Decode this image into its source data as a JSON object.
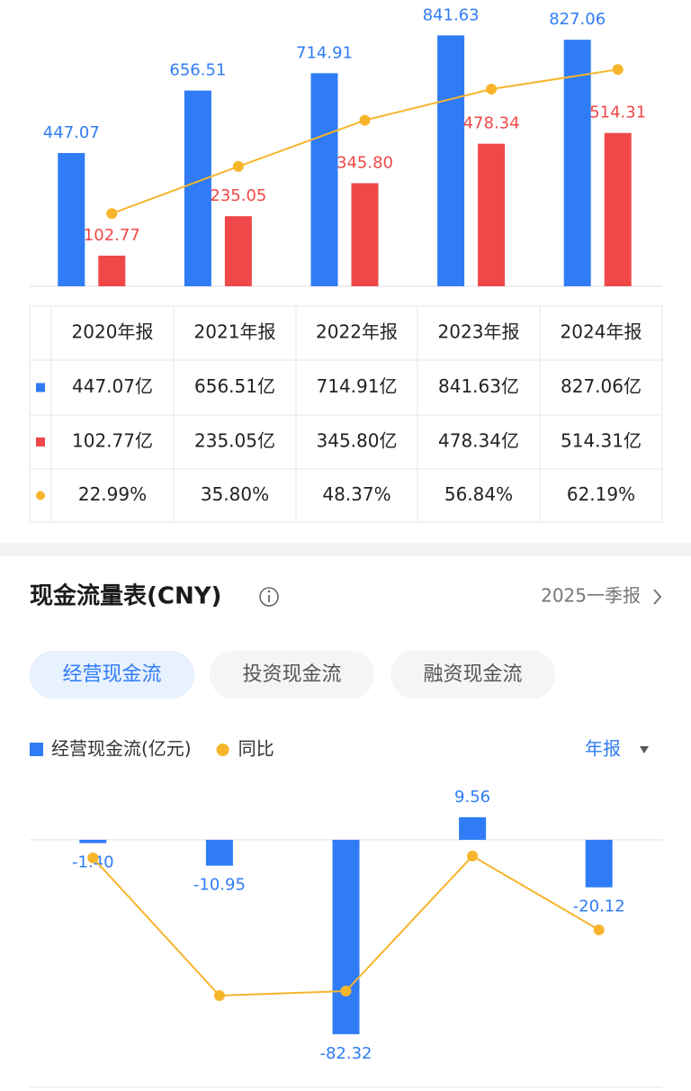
{
  "chart_data": [
    {
      "type": "bar",
      "categories": [
        "2020年报",
        "2021年报",
        "2022年报",
        "2023年报",
        "2024年报"
      ],
      "series": [
        {
          "color": "#2f7cf6",
          "values": [
            447.07,
            656.51,
            714.91,
            841.63,
            827.06
          ]
        },
        {
          "color": "#f04848",
          "values": [
            102.77,
            235.05,
            345.8,
            478.34,
            514.31
          ],
          "value_labels": [
            "102.77",
            "235.05",
            "345.80",
            "478.34",
            "514.31"
          ]
        },
        {
          "type": "line",
          "axis": "y2",
          "color": "#f7b52c",
          "values": [
            22.99,
            35.8,
            48.37,
            56.84,
            62.19
          ]
        }
      ],
      "ylim": [
        0,
        900
      ],
      "y2lim": [
        3.2,
        76.2
      ]
    },
    {
      "type": "bar",
      "series": [
        {
          "name": "经营现金流(亿元)",
          "color": "#2f7cf6",
          "values": [
            -1.4,
            -10.95,
            -82.32,
            9.56,
            -20.12
          ],
          "value_labels": [
            "-1.40",
            "-10.95",
            "-82.32",
            "9.56",
            "-20.12"
          ]
        },
        {
          "name": "同比",
          "type": "line",
          "axis": "y2",
          "color": "#f7b52c",
          "values": [
            -10,
            -86.5,
            -84,
            -9,
            -50
          ]
        }
      ],
      "ylim": [
        -98,
        24
      ],
      "y2lim": [
        -128.5,
        31.5
      ]
    }
  ],
  "table": {
    "rows": [
      [
        "447.07亿",
        "656.51亿",
        "714.91亿",
        "841.63亿",
        "827.06亿"
      ],
      [
        "102.77亿",
        "235.05亿",
        "345.80亿",
        "478.34亿",
        "514.31亿"
      ],
      [
        "22.99%",
        "35.80%",
        "48.37%",
        "56.84%",
        "62.19%"
      ]
    ]
  },
  "section": {
    "title": "现金流量表(CNY)",
    "report": "2025一季报",
    "tabs": [
      "经营现金流",
      "投资现金流",
      "融资现金流"
    ],
    "active_tab": 0,
    "period": "年报"
  }
}
